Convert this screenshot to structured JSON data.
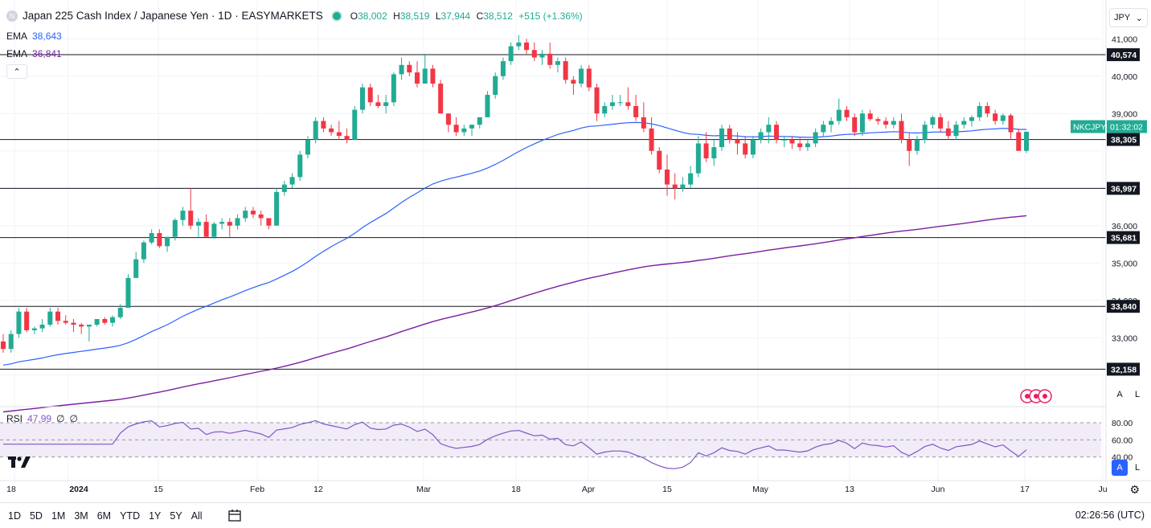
{
  "header": {
    "symbol_icon": "N",
    "title": "Japan 225 Cash Index / Japanese Yen · 1D · EASYMARKETS",
    "ohlc": [
      {
        "label": "O",
        "value": "38,002"
      },
      {
        "label": "H",
        "value": "38,519"
      },
      {
        "label": "L",
        "value": "37,944"
      },
      {
        "label": "C",
        "value": "38,512"
      }
    ],
    "change": "+515 (+1.36%)",
    "status_color": "#22ab94"
  },
  "indicators": {
    "ema_fast": {
      "label": "EMA",
      "value": "38,643",
      "color": "#2962ff"
    },
    "ema_slow": {
      "label": "EMA",
      "value": "36,841",
      "color": "#7b1fa2"
    },
    "collapse_icon": "chevron-up-icon",
    "collapse_label": "⌃"
  },
  "currency": {
    "label": "JPY",
    "icon": "chevron-down-icon",
    "glyph": "⌄"
  },
  "rsi": {
    "label": "RSI",
    "value": "47.99",
    "extra1": "∅",
    "extra2": "∅",
    "color": "#7e57c2",
    "levels": [
      80,
      60,
      40
    ],
    "fill": "#ede7f6"
  },
  "colors": {
    "up": "#22ab94",
    "down": "#f23645",
    "grid": "#f0f3fa",
    "axis_text": "#131722"
  },
  "chart_data": {
    "type": "candlestick",
    "series_name": "NKCJPY",
    "countdown": "01:32:02",
    "ylim": [
      31500,
      41500
    ],
    "y_ticks": [
      "33,000",
      "34,000",
      "35,000",
      "36,000",
      "39,000",
      "40,000",
      "41,000"
    ],
    "x_ticks": [
      "18",
      "2024",
      "15",
      "Feb",
      "12",
      "Mar",
      "18",
      "Apr",
      "15",
      "May",
      "13",
      "Jun",
      "17",
      "Ju"
    ],
    "horizontal_levels": [
      40574,
      38305,
      36997,
      35681,
      33840,
      32158
    ],
    "level_labels": [
      "40,574",
      "38,305",
      "36,997",
      "35,681",
      "33,840",
      "32,158"
    ],
    "candles_approx": [
      [
        32900,
        33100,
        32600,
        32700
      ],
      [
        32700,
        33200,
        32600,
        33100
      ],
      [
        33100,
        33800,
        33000,
        33700
      ],
      [
        33700,
        33800,
        33150,
        33200
      ],
      [
        33200,
        33300,
        33100,
        33250
      ],
      [
        33250,
        33500,
        33150,
        33350
      ],
      [
        33350,
        33800,
        33300,
        33700
      ],
      [
        33700,
        33800,
        33350,
        33450
      ],
      [
        33450,
        33600,
        33350,
        33400
      ],
      [
        33400,
        33500,
        33150,
        33350
      ],
      [
        33350,
        33400,
        33100,
        33300
      ],
      [
        33300,
        33350,
        32900,
        33350
      ],
      [
        33350,
        33500,
        33300,
        33500
      ],
      [
        33500,
        33550,
        33350,
        33400
      ],
      [
        33400,
        33600,
        33300,
        33550
      ],
      [
        33550,
        33900,
        33500,
        33800
      ],
      [
        33800,
        34700,
        33800,
        34600
      ],
      [
        34600,
        35300,
        34600,
        35100
      ],
      [
        35100,
        35600,
        35000,
        35550
      ],
      [
        35550,
        35900,
        35500,
        35800
      ],
      [
        35800,
        35900,
        35400,
        35450
      ],
      [
        35450,
        35700,
        35300,
        35700
      ],
      [
        35700,
        36200,
        35600,
        36150
      ],
      [
        36150,
        36500,
        36000,
        36400
      ],
      [
        36400,
        37000,
        35900,
        36000
      ],
      [
        36000,
        36200,
        35700,
        36100
      ],
      [
        36100,
        36300,
        35700,
        35700
      ],
      [
        35700,
        36100,
        35650,
        36050
      ],
      [
        36050,
        36200,
        35900,
        36100
      ],
      [
        36100,
        36200,
        35700,
        36000
      ],
      [
        36000,
        36300,
        35900,
        36200
      ],
      [
        36200,
        36500,
        36100,
        36400
      ],
      [
        36400,
        36500,
        36200,
        36300
      ],
      [
        36300,
        36400,
        36000,
        36200
      ],
      [
        36200,
        36200,
        35900,
        36000
      ],
      [
        36000,
        37000,
        36000,
        36900
      ],
      [
        36900,
        37200,
        36800,
        37100
      ],
      [
        37100,
        37400,
        37000,
        37300
      ],
      [
        37300,
        38000,
        37200,
        37900
      ],
      [
        37900,
        38400,
        37800,
        38300
      ],
      [
        38300,
        38900,
        38200,
        38800
      ],
      [
        38800,
        38900,
        38500,
        38600
      ],
      [
        38600,
        38700,
        38400,
        38500
      ],
      [
        38500,
        38800,
        38300,
        38400
      ],
      [
        38400,
        38600,
        38200,
        38300
      ],
      [
        38300,
        39200,
        38300,
        39100
      ],
      [
        39100,
        39800,
        39000,
        39700
      ],
      [
        39700,
        39800,
        39200,
        39300
      ],
      [
        39300,
        39500,
        39150,
        39200
      ],
      [
        39200,
        39500,
        39000,
        39300
      ],
      [
        39300,
        40100,
        39200,
        40050
      ],
      [
        40050,
        40500,
        39900,
        40300
      ],
      [
        40300,
        40400,
        40000,
        40100
      ],
      [
        40100,
        40400,
        39700,
        39800
      ],
      [
        39800,
        40600,
        39800,
        40200
      ],
      [
        40200,
        40300,
        39700,
        39800
      ],
      [
        39800,
        39900,
        39000,
        39000
      ],
      [
        39000,
        39000,
        38500,
        38700
      ],
      [
        38700,
        38900,
        38400,
        38500
      ],
      [
        38500,
        38700,
        38400,
        38600
      ],
      [
        38600,
        38700,
        38400,
        38700
      ],
      [
        38700,
        38900,
        38600,
        38900
      ],
      [
        38900,
        39600,
        38900,
        39500
      ],
      [
        39500,
        40100,
        39400,
        40000
      ],
      [
        40000,
        40500,
        39900,
        40400
      ],
      [
        40400,
        40900,
        40300,
        40800
      ],
      [
        40800,
        41100,
        40700,
        40900
      ],
      [
        40900,
        41000,
        40600,
        40700
      ],
      [
        40700,
        40900,
        40400,
        40500
      ],
      [
        40500,
        40700,
        40300,
        40600
      ],
      [
        40600,
        40900,
        40200,
        40300
      ],
      [
        40300,
        40500,
        40100,
        40400
      ],
      [
        40400,
        40500,
        39800,
        39900
      ],
      [
        39900,
        40000,
        39500,
        39800
      ],
      [
        39800,
        40300,
        39700,
        40200
      ],
      [
        40200,
        40300,
        39600,
        39700
      ],
      [
        39700,
        39800,
        38800,
        39000
      ],
      [
        39000,
        39300,
        38900,
        39200
      ],
      [
        39200,
        39500,
        39100,
        39300
      ],
      [
        39300,
        39500,
        39200,
        39300
      ],
      [
        39300,
        39700,
        39100,
        39200
      ],
      [
        39200,
        39500,
        38800,
        38900
      ],
      [
        38900,
        39300,
        38500,
        38600
      ],
      [
        38600,
        38900,
        37900,
        38000
      ],
      [
        38000,
        38100,
        37400,
        37500
      ],
      [
        37500,
        37900,
        36800,
        37100
      ],
      [
        37100,
        37400,
        36700,
        37000
      ],
      [
        37000,
        37300,
        36900,
        37100
      ],
      [
        37100,
        37600,
        37000,
        37400
      ],
      [
        37400,
        38400,
        37300,
        38200
      ],
      [
        38200,
        38500,
        37700,
        37800
      ],
      [
        37800,
        38300,
        37600,
        38100
      ],
      [
        38100,
        38700,
        38000,
        38600
      ],
      [
        38600,
        38700,
        38200,
        38300
      ],
      [
        38300,
        38500,
        37900,
        38200
      ],
      [
        38200,
        38400,
        37800,
        37900
      ],
      [
        37900,
        38400,
        37800,
        38300
      ],
      [
        38300,
        38600,
        38200,
        38500
      ],
      [
        38500,
        38900,
        38200,
        38700
      ],
      [
        38700,
        38800,
        38200,
        38300
      ],
      [
        38300,
        38400,
        38100,
        38300
      ],
      [
        38300,
        38400,
        38050,
        38200
      ],
      [
        38200,
        38350,
        38000,
        38100
      ],
      [
        38100,
        38300,
        38000,
        38200
      ],
      [
        38200,
        38600,
        38100,
        38500
      ],
      [
        38500,
        38800,
        38400,
        38700
      ],
      [
        38700,
        38900,
        38500,
        38800
      ],
      [
        38800,
        39400,
        38700,
        39100
      ],
      [
        39100,
        39200,
        38800,
        38900
      ],
      [
        38900,
        39000,
        38400,
        38500
      ],
      [
        38500,
        39100,
        38400,
        39000
      ],
      [
        39000,
        39100,
        38800,
        38850
      ],
      [
        38850,
        38900,
        38700,
        38800
      ],
      [
        38800,
        38900,
        38600,
        38700
      ],
      [
        38700,
        38900,
        38600,
        38800
      ],
      [
        38800,
        39000,
        38200,
        38300
      ],
      [
        38300,
        38500,
        37600,
        38000
      ],
      [
        38000,
        38400,
        37900,
        38300
      ],
      [
        38300,
        38800,
        38200,
        38700
      ],
      [
        38700,
        38950,
        38600,
        38900
      ],
      [
        38900,
        39000,
        38500,
        38600
      ],
      [
        38600,
        38800,
        38300,
        38400
      ],
      [
        38400,
        38800,
        38300,
        38700
      ],
      [
        38700,
        38900,
        38600,
        38800
      ],
      [
        38800,
        38950,
        38650,
        38900
      ],
      [
        38900,
        39300,
        38800,
        39200
      ],
      [
        39200,
        39300,
        38900,
        39000
      ],
      [
        39000,
        39100,
        38700,
        38800
      ],
      [
        38800,
        39000,
        38700,
        38950
      ],
      [
        38950,
        39000,
        38300,
        38500
      ],
      [
        38500,
        38600,
        38000,
        38000
      ],
      [
        38002,
        38519,
        37944,
        38512
      ]
    ]
  },
  "bottom_bar": {
    "ranges": [
      "1D",
      "5D",
      "1M",
      "3M",
      "6M",
      "YTD",
      "1Y",
      "5Y",
      "All"
    ],
    "compare_icon": "calendar-compare-icon",
    "clock": "02:26:56 (UTC)"
  },
  "scale_buttons": {
    "auto": "A",
    "log": "L"
  },
  "settings_icon": "gear-icon",
  "logo": "TV"
}
